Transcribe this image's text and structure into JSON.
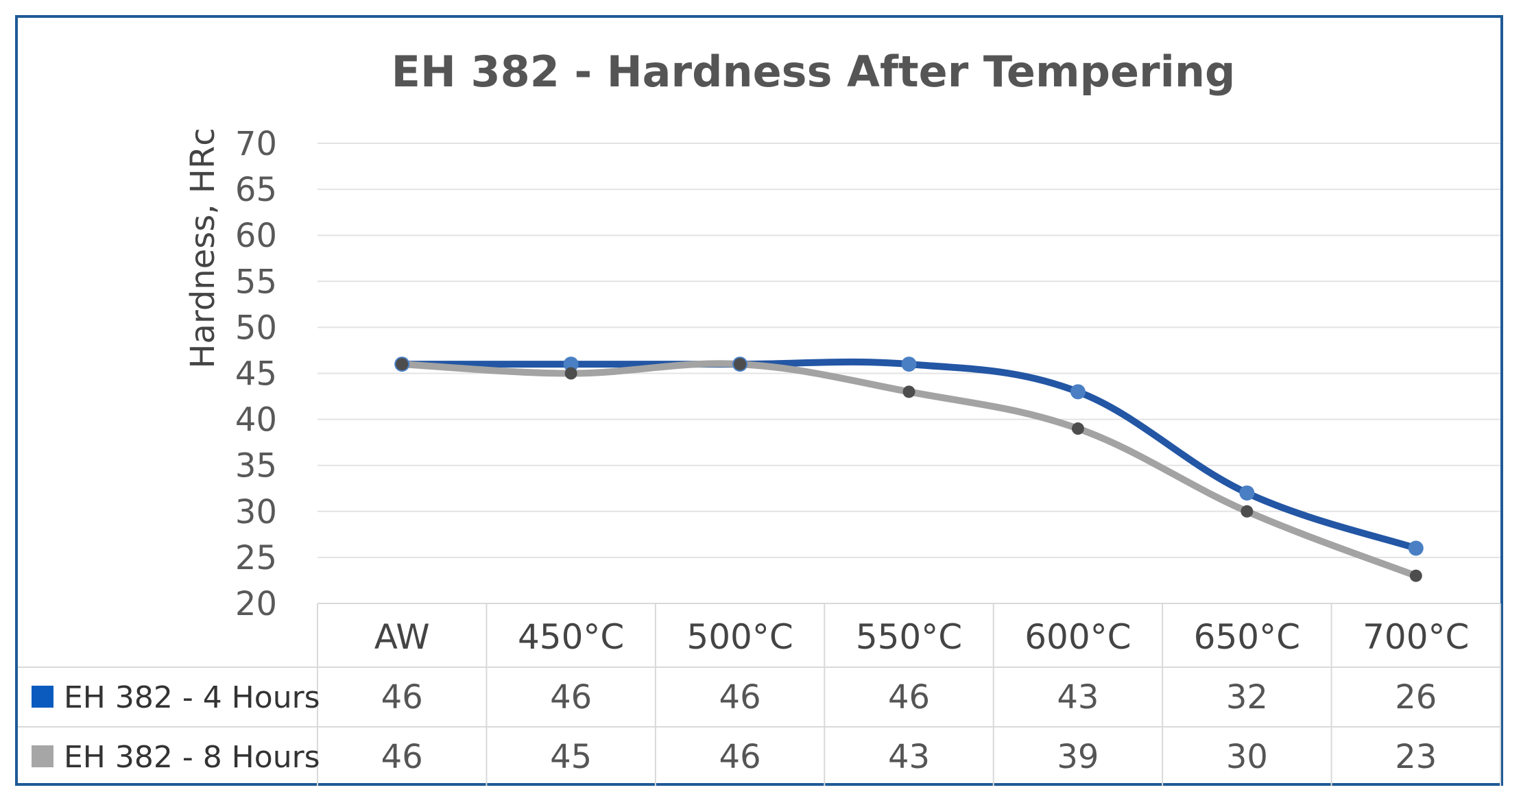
{
  "chart_data": {
    "type": "line",
    "title": "EH 382 - Hardness After Tempering",
    "ylabel": "Hardness, HRc",
    "xlabel": "",
    "ylim": [
      20,
      70
    ],
    "yticks": [
      70,
      65,
      60,
      55,
      50,
      45,
      40,
      35,
      30,
      25,
      20
    ],
    "grid": true,
    "legend": "data-table",
    "categories": [
      "AW",
      "450°C",
      "500°C",
      "550°C",
      "600°C",
      "650°C",
      "700°C"
    ],
    "series": [
      {
        "name": "EH 382 - 4 Hours",
        "values": [
          46,
          46,
          46,
          46,
          43,
          32,
          26
        ],
        "line_color": "#2356a4",
        "marker_color": "#4a7fc4",
        "key_color": "#0b5bbf"
      },
      {
        "name": "EH 382 - 8 Hours",
        "values": [
          46,
          45,
          46,
          43,
          39,
          30,
          23
        ],
        "line_color": "#a3a3a3",
        "marker_color": "#4d4d4d",
        "key_color": "#a6a6a6"
      }
    ]
  },
  "colors": {
    "frame": "#1f5a96"
  }
}
